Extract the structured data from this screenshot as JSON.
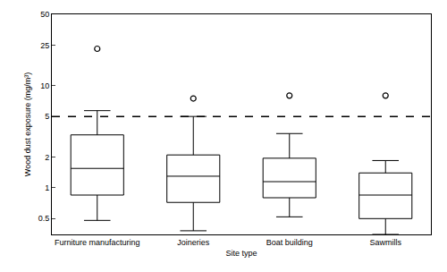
{
  "chart_data": {
    "type": "box",
    "x_label": "Site type",
    "y_label": "Wood dust exposure (mg/m³)",
    "categories": [
      "Furniture manufacturing",
      "Joineries",
      "Boat building",
      "Sawmills"
    ],
    "lower_whisker": [
      0.48,
      0.38,
      0.52,
      0.35
    ],
    "q1": [
      0.85,
      0.72,
      0.8,
      0.5
    ],
    "median": [
      1.55,
      1.3,
      1.15,
      0.85
    ],
    "q3": [
      3.3,
      2.1,
      1.95,
      1.4
    ],
    "upper_whisker": [
      5.7,
      5.0,
      3.4,
      1.85
    ],
    "outliers": [
      [
        23
      ],
      [
        7.5
      ],
      [
        8
      ],
      [
        8
      ]
    ],
    "color": "#000000",
    "marker": "open_circle",
    "reference_line": {
      "value": 5,
      "line_style": "dash"
    },
    "log": "y",
    "ylim": [
      0.35,
      50
    ],
    "yticks": [
      0.5,
      1,
      2,
      5,
      10,
      25,
      50
    ],
    "grid": false
  }
}
